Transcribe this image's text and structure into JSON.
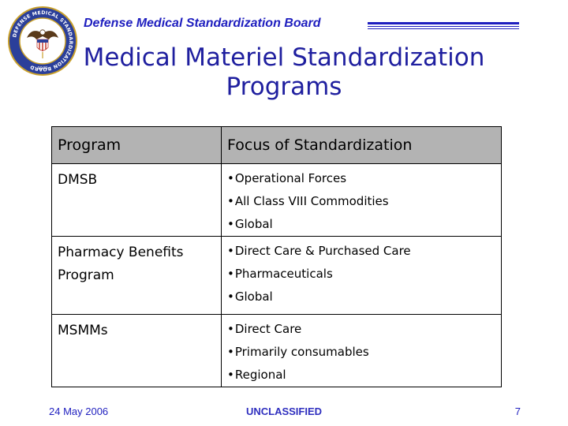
{
  "header": {
    "org_title": "Defense Medical Standardization Board",
    "seal_icon": "dmsb-seal-icon",
    "seal_text": "DEFENSE MEDICAL STANDARDIZATION BOARD",
    "seal_year": "1949",
    "accent_color": "#1f1fbf"
  },
  "slide": {
    "title_line1": "Medical Materiel Standardization",
    "title_line2": "Programs"
  },
  "table": {
    "headers": [
      "Program",
      "Focus of Standardization"
    ],
    "rows": [
      {
        "program": [
          "DMSB"
        ],
        "focus": [
          "Operational Forces",
          "All Class VIII Commodities",
          "Global"
        ]
      },
      {
        "program": [
          "Pharmacy Benefits",
          "Program"
        ],
        "focus": [
          "Direct Care & Purchased Care",
          "Pharmaceuticals",
          "Global"
        ]
      },
      {
        "program": [
          "MSMMs"
        ],
        "focus": [
          "Direct Care",
          "Primarily consumables",
          "Regional"
        ]
      }
    ]
  },
  "footer": {
    "date": "24 May 2006",
    "classification": "UNCLASSIFIED",
    "page_number": "7"
  }
}
